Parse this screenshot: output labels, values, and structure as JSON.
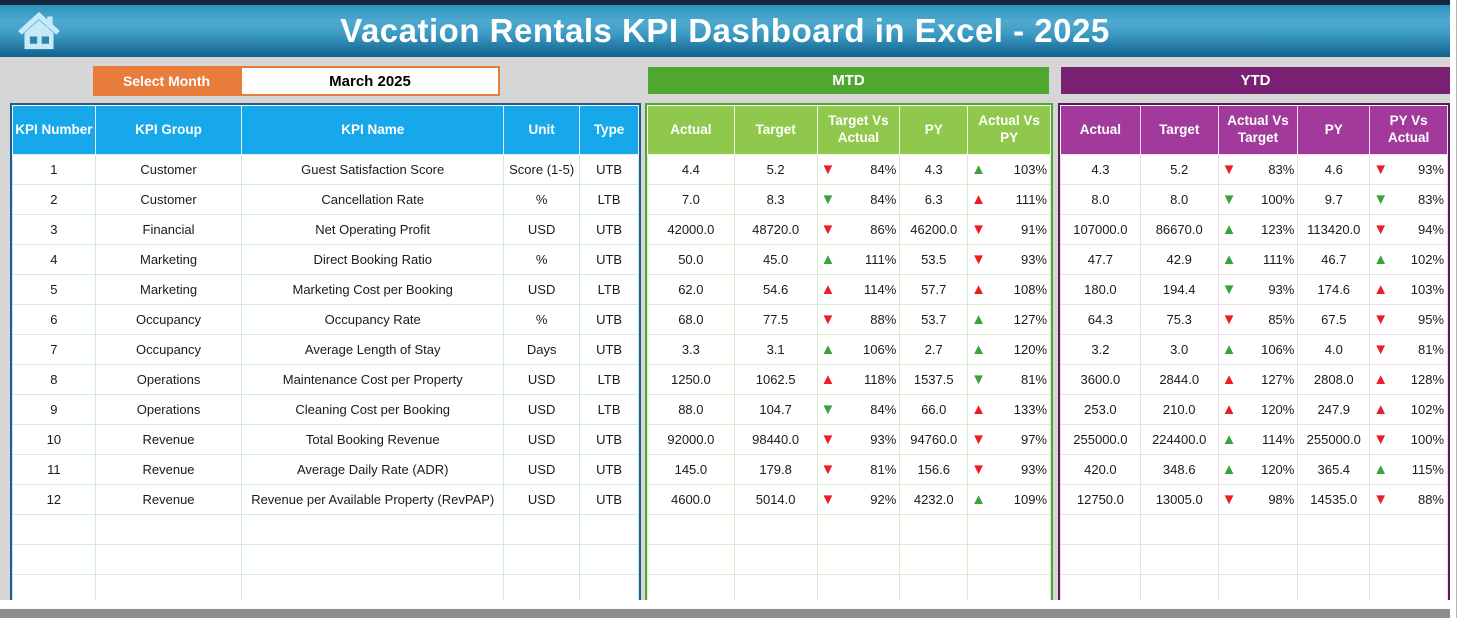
{
  "header": {
    "title": "Vacation Rentals KPI Dashboard in Excel - 2025"
  },
  "icons": {
    "home": "home-icon",
    "up_arrow": "▲",
    "down_arrow": "▼"
  },
  "colors": {
    "title_bar_blue": "#2b93bd",
    "orange": "#e87c3b",
    "kpi_header_blue": "#16a8ea",
    "mtd_green": "#4ea72e",
    "mtd_header_green": "#8fc84c",
    "ytd_purple": "#7b2173",
    "ytd_header_purple": "#a23a9b",
    "arrow_red": "#ee1c25",
    "arrow_green": "#3da23a"
  },
  "controls": {
    "select_month_label": "Select Month",
    "selected_month": "March 2025"
  },
  "kpi_table": {
    "headers": [
      "KPI Number",
      "KPI Group",
      "KPI Name",
      "Unit",
      "Type"
    ],
    "rows": [
      {
        "number": "1",
        "group": "Customer",
        "name": "Guest Satisfaction Score",
        "unit": "Score (1-5)",
        "type": "UTB"
      },
      {
        "number": "2",
        "group": "Customer",
        "name": "Cancellation Rate",
        "unit": "%",
        "type": "LTB"
      },
      {
        "number": "3",
        "group": "Financial",
        "name": "Net Operating Profit",
        "unit": "USD",
        "type": "UTB"
      },
      {
        "number": "4",
        "group": "Marketing",
        "name": "Direct Booking Ratio",
        "unit": "%",
        "type": "UTB"
      },
      {
        "number": "5",
        "group": "Marketing",
        "name": "Marketing Cost per Booking",
        "unit": "USD",
        "type": "LTB"
      },
      {
        "number": "6",
        "group": "Occupancy",
        "name": "Occupancy Rate",
        "unit": "%",
        "type": "UTB"
      },
      {
        "number": "7",
        "group": "Occupancy",
        "name": "Average Length of Stay",
        "unit": "Days",
        "type": "UTB"
      },
      {
        "number": "8",
        "group": "Operations",
        "name": "Maintenance Cost per Property",
        "unit": "USD",
        "type": "LTB"
      },
      {
        "number": "9",
        "group": "Operations",
        "name": "Cleaning Cost per Booking",
        "unit": "USD",
        "type": "LTB"
      },
      {
        "number": "10",
        "group": "Revenue",
        "name": "Total Booking Revenue",
        "unit": "USD",
        "type": "UTB"
      },
      {
        "number": "11",
        "group": "Revenue",
        "name": "Average Daily Rate (ADR)",
        "unit": "USD",
        "type": "UTB"
      },
      {
        "number": "12",
        "group": "Revenue",
        "name": "Revenue per Available Property (RevPAP)",
        "unit": "USD",
        "type": "UTB"
      }
    ]
  },
  "mtd": {
    "title": "MTD",
    "headers": [
      "Actual",
      "Target",
      "Target Vs Actual",
      "PY",
      "Actual Vs PY"
    ],
    "rows": [
      {
        "actual": "4.4",
        "target": "5.2",
        "target_vs_actual": {
          "trend": "down-red",
          "value": "84%"
        },
        "py": "4.3",
        "actual_vs_py": {
          "trend": "up-green",
          "value": "103%"
        }
      },
      {
        "actual": "7.0",
        "target": "8.3",
        "target_vs_actual": {
          "trend": "down-green",
          "value": "84%"
        },
        "py": "6.3",
        "actual_vs_py": {
          "trend": "up-red",
          "value": "111%"
        }
      },
      {
        "actual": "42000.0",
        "target": "48720.0",
        "target_vs_actual": {
          "trend": "down-red",
          "value": "86%"
        },
        "py": "46200.0",
        "actual_vs_py": {
          "trend": "down-red",
          "value": "91%"
        }
      },
      {
        "actual": "50.0",
        "target": "45.0",
        "target_vs_actual": {
          "trend": "up-green",
          "value": "111%"
        },
        "py": "53.5",
        "actual_vs_py": {
          "trend": "down-red",
          "value": "93%"
        }
      },
      {
        "actual": "62.0",
        "target": "54.6",
        "target_vs_actual": {
          "trend": "up-red",
          "value": "114%"
        },
        "py": "57.7",
        "actual_vs_py": {
          "trend": "up-red",
          "value": "108%"
        }
      },
      {
        "actual": "68.0",
        "target": "77.5",
        "target_vs_actual": {
          "trend": "down-red",
          "value": "88%"
        },
        "py": "53.7",
        "actual_vs_py": {
          "trend": "up-green",
          "value": "127%"
        }
      },
      {
        "actual": "3.3",
        "target": "3.1",
        "target_vs_actual": {
          "trend": "up-green",
          "value": "106%"
        },
        "py": "2.7",
        "actual_vs_py": {
          "trend": "up-green",
          "value": "120%"
        }
      },
      {
        "actual": "1250.0",
        "target": "1062.5",
        "target_vs_actual": {
          "trend": "up-red",
          "value": "118%"
        },
        "py": "1537.5",
        "actual_vs_py": {
          "trend": "down-green",
          "value": "81%"
        }
      },
      {
        "actual": "88.0",
        "target": "104.7",
        "target_vs_actual": {
          "trend": "down-green",
          "value": "84%"
        },
        "py": "66.0",
        "actual_vs_py": {
          "trend": "up-red",
          "value": "133%"
        }
      },
      {
        "actual": "92000.0",
        "target": "98440.0",
        "target_vs_actual": {
          "trend": "down-red",
          "value": "93%"
        },
        "py": "94760.0",
        "actual_vs_py": {
          "trend": "down-red",
          "value": "97%"
        }
      },
      {
        "actual": "145.0",
        "target": "179.8",
        "target_vs_actual": {
          "trend": "down-red",
          "value": "81%"
        },
        "py": "156.6",
        "actual_vs_py": {
          "trend": "down-red",
          "value": "93%"
        }
      },
      {
        "actual": "4600.0",
        "target": "5014.0",
        "target_vs_actual": {
          "trend": "down-red",
          "value": "92%"
        },
        "py": "4232.0",
        "actual_vs_py": {
          "trend": "up-green",
          "value": "109%"
        }
      }
    ]
  },
  "ytd": {
    "title": "YTD",
    "headers": [
      "Actual",
      "Target",
      "Actual Vs Target",
      "PY",
      "PY Vs Actual"
    ],
    "rows": [
      {
        "actual": "4.3",
        "target": "5.2",
        "actual_vs_target": {
          "trend": "down-red",
          "value": "83%"
        },
        "py": "4.6",
        "py_vs_actual": {
          "trend": "down-red",
          "value": "93%"
        }
      },
      {
        "actual": "8.0",
        "target": "8.0",
        "actual_vs_target": {
          "trend": "down-green",
          "value": "100%"
        },
        "py": "9.7",
        "py_vs_actual": {
          "trend": "down-green",
          "value": "83%"
        }
      },
      {
        "actual": "107000.0",
        "target": "86670.0",
        "actual_vs_target": {
          "trend": "up-green",
          "value": "123%"
        },
        "py": "113420.0",
        "py_vs_actual": {
          "trend": "down-red",
          "value": "94%"
        }
      },
      {
        "actual": "47.7",
        "target": "42.9",
        "actual_vs_target": {
          "trend": "up-green",
          "value": "111%"
        },
        "py": "46.7",
        "py_vs_actual": {
          "trend": "up-green",
          "value": "102%"
        }
      },
      {
        "actual": "180.0",
        "target": "194.4",
        "actual_vs_target": {
          "trend": "down-green",
          "value": "93%"
        },
        "py": "174.6",
        "py_vs_actual": {
          "trend": "up-red",
          "value": "103%"
        }
      },
      {
        "actual": "64.3",
        "target": "75.3",
        "actual_vs_target": {
          "trend": "down-red",
          "value": "85%"
        },
        "py": "67.5",
        "py_vs_actual": {
          "trend": "down-red",
          "value": "95%"
        }
      },
      {
        "actual": "3.2",
        "target": "3.0",
        "actual_vs_target": {
          "trend": "up-green",
          "value": "106%"
        },
        "py": "4.0",
        "py_vs_actual": {
          "trend": "down-red",
          "value": "81%"
        }
      },
      {
        "actual": "3600.0",
        "target": "2844.0",
        "actual_vs_target": {
          "trend": "up-red",
          "value": "127%"
        },
        "py": "2808.0",
        "py_vs_actual": {
          "trend": "up-red",
          "value": "128%"
        }
      },
      {
        "actual": "253.0",
        "target": "210.0",
        "actual_vs_target": {
          "trend": "up-red",
          "value": "120%"
        },
        "py": "247.9",
        "py_vs_actual": {
          "trend": "up-red",
          "value": "102%"
        }
      },
      {
        "actual": "255000.0",
        "target": "224400.0",
        "actual_vs_target": {
          "trend": "up-green",
          "value": "114%"
        },
        "py": "255000.0",
        "py_vs_actual": {
          "trend": "down-red",
          "value": "100%"
        }
      },
      {
        "actual": "420.0",
        "target": "348.6",
        "actual_vs_target": {
          "trend": "up-green",
          "value": "120%"
        },
        "py": "365.4",
        "py_vs_actual": {
          "trend": "up-green",
          "value": "115%"
        }
      },
      {
        "actual": "12750.0",
        "target": "13005.0",
        "actual_vs_target": {
          "trend": "down-red",
          "value": "98%"
        },
        "py": "14535.0",
        "py_vs_actual": {
          "trend": "down-red",
          "value": "88%"
        }
      }
    ]
  }
}
